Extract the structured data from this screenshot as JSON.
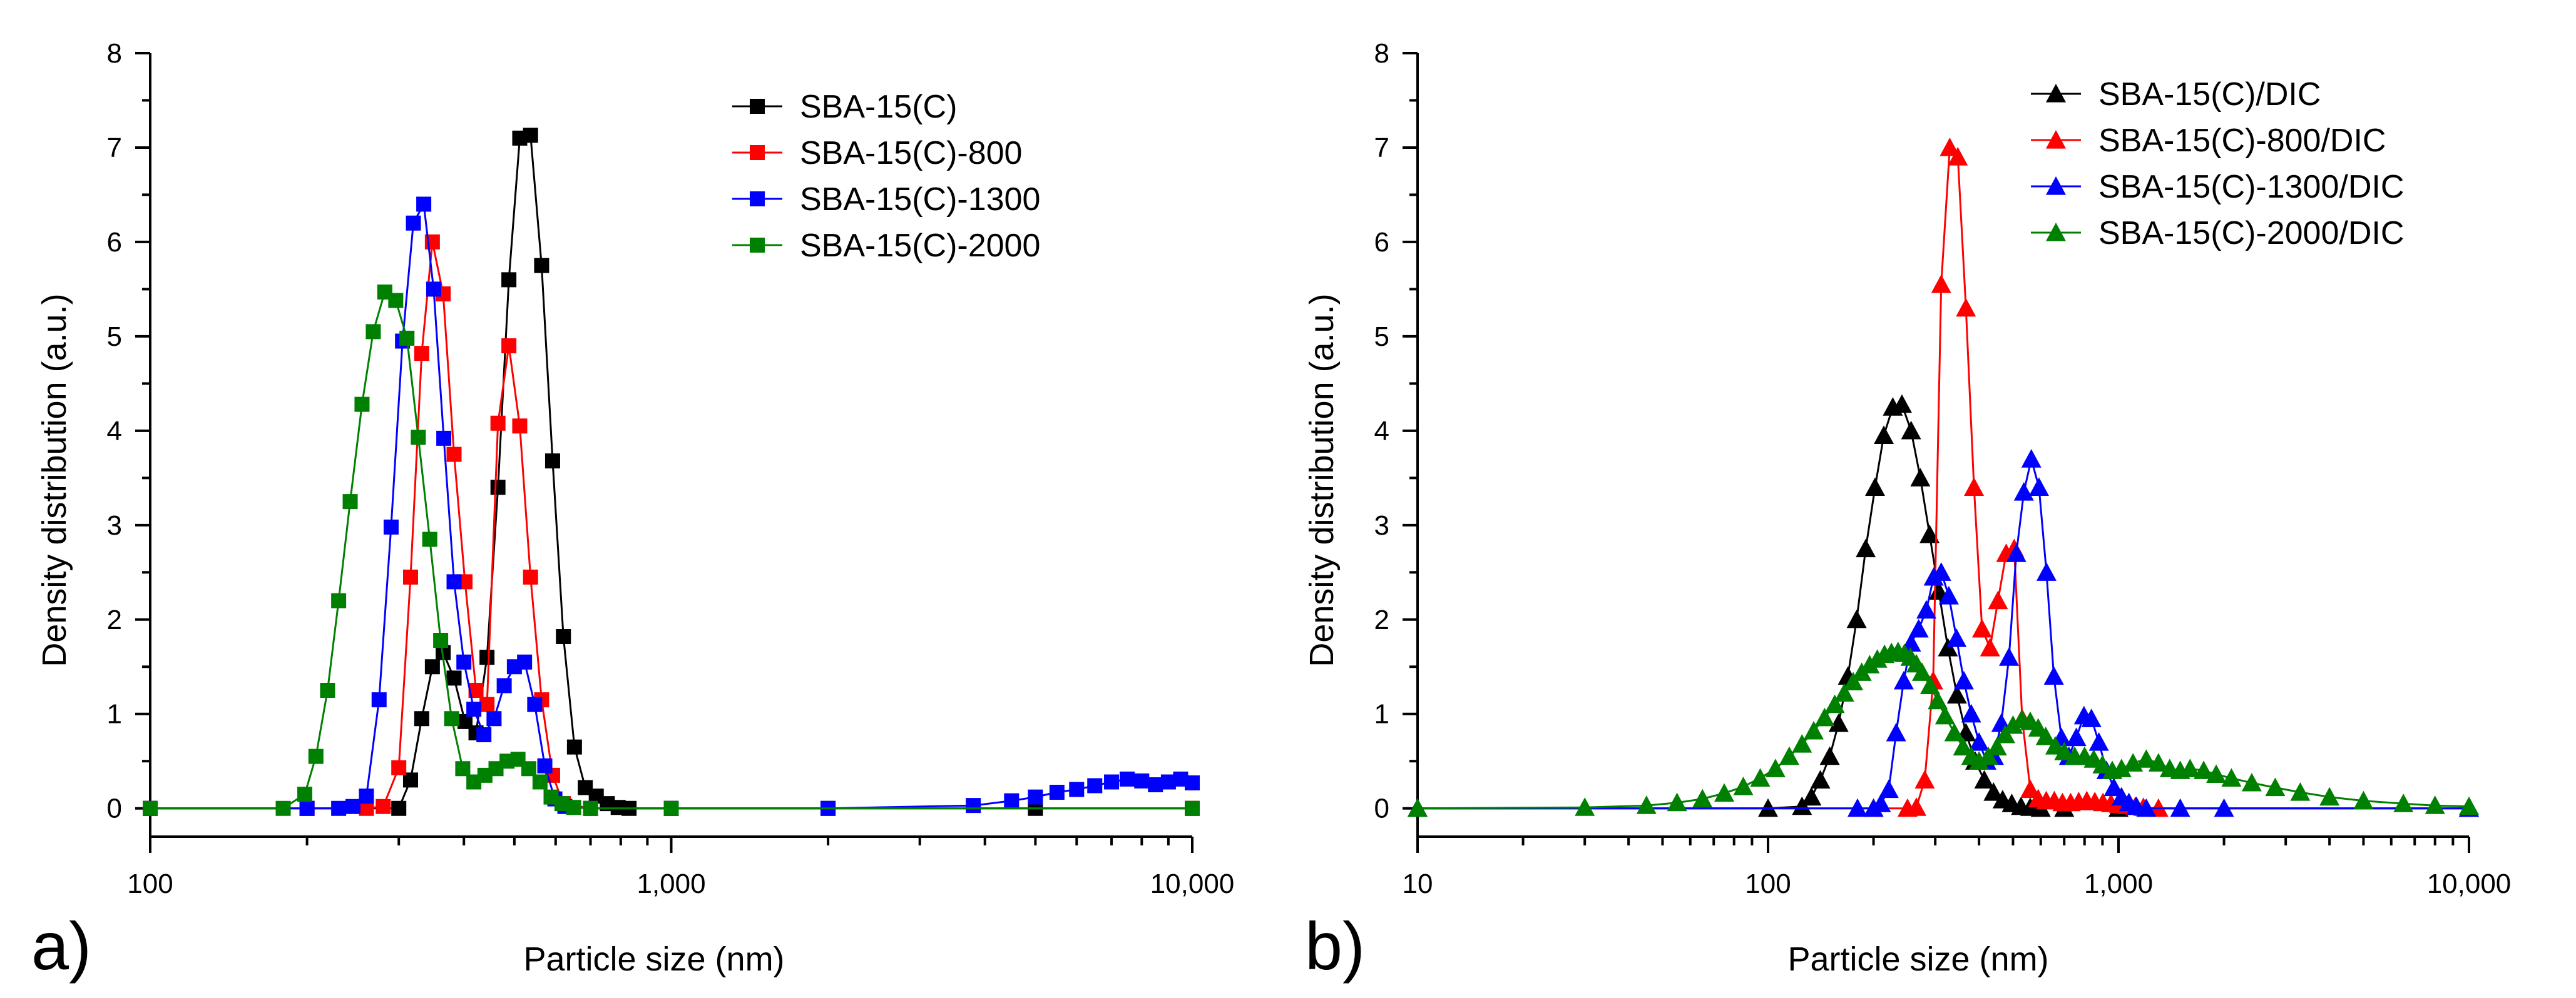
{
  "chart_data": [
    {
      "panel_label": "a)",
      "type": "line",
      "x_scale": "log",
      "xlabel": "Particle size (nm)",
      "ylabel": "Density distribution (a.u.)",
      "xlim": [
        100,
        10000
      ],
      "ylim": [
        -0.3,
        8
      ],
      "x_ticks": [
        100,
        1000,
        10000
      ],
      "x_tick_labels": [
        "100",
        "1,000",
        "10,000"
      ],
      "y_ticks": [
        0,
        1,
        2,
        3,
        4,
        5,
        6,
        7,
        8
      ],
      "y_tick_labels": [
        "0",
        "1",
        "2",
        "3",
        "4",
        "5",
        "6",
        "7",
        "8"
      ],
      "marker": "square",
      "legend_position": "top-right",
      "series": [
        {
          "name": "SBA-15(C)",
          "color": "#000000",
          "x": [
            100,
            200,
            300,
            316,
            332,
            348,
            365,
            383,
            402,
            422,
            443,
            465,
            488,
            512,
            537,
            564,
            592,
            621,
            652,
            684,
            718,
            754,
            791,
            830,
            1000,
            2000,
            5000,
            10000
          ],
          "y": [
            0,
            0,
            0,
            0.3,
            0.95,
            1.5,
            1.65,
            1.38,
            0.92,
            0.8,
            1.6,
            3.4,
            5.6,
            7.1,
            7.13,
            5.75,
            3.68,
            1.82,
            0.65,
            0.22,
            0.13,
            0.05,
            0.01,
            0,
            0,
            0,
            0,
            0
          ]
        },
        {
          "name": "SBA-15(C)-800",
          "color": "#ff0000",
          "x": [
            100,
            200,
            260,
            280,
            300,
            316,
            332,
            348,
            365,
            383,
            402,
            422,
            443,
            465,
            488,
            512,
            537,
            564,
            592,
            621,
            700,
            1000,
            10000
          ],
          "y": [
            0,
            0,
            0,
            0.02,
            0.43,
            2.45,
            4.82,
            6.0,
            5.45,
            3.75,
            2.4,
            1.25,
            1.1,
            4.08,
            4.9,
            4.05,
            2.45,
            1.15,
            0.35,
            0.05,
            0,
            0,
            0
          ]
        },
        {
          "name": "SBA-15(C)-1300",
          "color": "#0000ff",
          "x": [
            100,
            200,
            230,
            245,
            260,
            275,
            290,
            305,
            320,
            335,
            350,
            366,
            383,
            400,
            418,
            437,
            457,
            478,
            500,
            523,
            547,
            572,
            598,
            625,
            700,
            1000,
            2000,
            3800,
            4500,
            5000,
            5500,
            6000,
            6500,
            7000,
            7500,
            8000,
            8500,
            9000,
            9500,
            10000
          ],
          "y": [
            0,
            0,
            0,
            0.02,
            0.13,
            1.15,
            2.98,
            4.95,
            6.2,
            6.4,
            5.5,
            3.92,
            2.4,
            1.55,
            1.05,
            0.78,
            0.95,
            1.3,
            1.5,
            1.55,
            1.1,
            0.45,
            0.1,
            0.02,
            0,
            0,
            0,
            0.03,
            0.08,
            0.12,
            0.17,
            0.2,
            0.24,
            0.28,
            0.31,
            0.29,
            0.25,
            0.28,
            0.31,
            0.27
          ]
        },
        {
          "name": "SBA-15(C)-2000",
          "color": "#008000",
          "x": [
            100,
            180,
            198,
            208,
            219,
            230,
            242,
            255,
            268,
            282,
            296,
            311,
            327,
            344,
            361,
            379,
            398,
            418,
            439,
            461,
            484,
            508,
            533,
            560,
            588,
            617,
            650,
            700,
            1000,
            10000
          ],
          "y": [
            0,
            0,
            0.15,
            0.55,
            1.25,
            2.2,
            3.25,
            4.28,
            5.05,
            5.47,
            5.38,
            4.98,
            3.93,
            2.85,
            1.78,
            0.95,
            0.42,
            0.28,
            0.35,
            0.42,
            0.5,
            0.52,
            0.42,
            0.28,
            0.12,
            0.05,
            0.01,
            0,
            0,
            0
          ]
        }
      ]
    },
    {
      "panel_label": "b)",
      "type": "line",
      "x_scale": "log",
      "xlabel": "Particle size (nm)",
      "ylabel": "Density distribution (a.u.)",
      "xlim": [
        10,
        10000
      ],
      "ylim": [
        -0.3,
        8
      ],
      "x_ticks": [
        10,
        100,
        1000,
        10000
      ],
      "x_tick_labels": [
        "10",
        "100",
        "1,000",
        "10,000"
      ],
      "y_ticks": [
        0,
        1,
        2,
        3,
        4,
        5,
        6,
        7,
        8
      ],
      "y_tick_labels": [
        "0",
        "1",
        "2",
        "3",
        "4",
        "5",
        "6",
        "7",
        "8"
      ],
      "marker": "triangle",
      "legend_position": "top-right",
      "series": [
        {
          "name": "SBA-15(C)/DIC",
          "color": "#000000",
          "x": [
            10,
            100,
            125,
            133,
            141,
            150,
            159,
            169,
            179,
            190,
            202,
            214,
            227,
            241,
            256,
            272,
            289,
            307,
            326,
            346,
            367,
            390,
            414,
            440,
            467,
            496,
            527,
            560,
            600,
            700,
            1000,
            10000
          ],
          "y": [
            0,
            0,
            0.02,
            0.12,
            0.3,
            0.55,
            0.9,
            1.4,
            2.0,
            2.75,
            3.4,
            3.95,
            4.25,
            4.28,
            4.0,
            3.5,
            2.9,
            2.3,
            1.7,
            1.2,
            0.8,
            0.5,
            0.3,
            0.17,
            0.09,
            0.05,
            0.02,
            0.01,
            0,
            0,
            0,
            0
          ]
        },
        {
          "name": "SBA-15(C)-800/DIC",
          "color": "#ff0000",
          "x": [
            10,
            200,
            250,
            265,
            280,
            296,
            312,
            330,
            348,
            367,
            387,
            408,
            430,
            453,
            478,
            504,
            531,
            560,
            590,
            622,
            656,
            692,
            730,
            770,
            812,
            856,
            903,
            952,
            1004,
            1059,
            1117,
            1178,
            1300,
            10000
          ],
          "y": [
            0,
            0,
            0,
            0.01,
            0.3,
            1.35,
            5.55,
            7.0,
            6.9,
            5.3,
            3.4,
            1.9,
            1.7,
            2.2,
            2.7,
            2.75,
            0.95,
            0.2,
            0.1,
            0.08,
            0.08,
            0.06,
            0.06,
            0.07,
            0.08,
            0.07,
            0.06,
            0.05,
            0.04,
            0.03,
            0.02,
            0.01,
            0,
            0
          ]
        },
        {
          "name": "SBA-15(C)-1300/DIC",
          "color": "#0000ff",
          "x": [
            10,
            180,
            200,
            210,
            221,
            232,
            244,
            256,
            269,
            283,
            297,
            312,
            328,
            345,
            362,
            380,
            400,
            420,
            441,
            463,
            487,
            511,
            537,
            564,
            593,
            623,
            654,
            687,
            722,
            758,
            797,
            837,
            879,
            924,
            970,
            1020,
            1071,
            1125,
            1200,
            1500,
            2000,
            10000
          ],
          "y": [
            0,
            0,
            0,
            0.05,
            0.2,
            0.8,
            1.35,
            1.75,
            1.9,
            2.1,
            2.45,
            2.5,
            2.25,
            1.8,
            1.35,
            1.0,
            0.7,
            0.5,
            0.55,
            0.9,
            1.6,
            2.7,
            3.35,
            3.7,
            3.4,
            2.5,
            1.4,
            0.75,
            0.55,
            0.75,
            0.98,
            0.95,
            0.7,
            0.4,
            0.22,
            0.12,
            0.06,
            0.02,
            0,
            0,
            0,
            0
          ]
        },
        {
          "name": "SBA-15(C)-2000/DIC",
          "color": "#008000",
          "x": [
            10,
            30,
            45,
            55,
            65,
            75,
            85,
            95,
            105,
            115,
            125,
            135,
            145,
            155,
            165,
            175,
            185,
            195,
            205,
            215,
            225,
            235,
            245,
            255,
            265,
            275,
            290,
            305,
            320,
            340,
            360,
            380,
            400,
            425,
            450,
            475,
            500,
            530,
            560,
            590,
            620,
            660,
            700,
            750,
            800,
            850,
            900,
            960,
            1020,
            1100,
            1200,
            1300,
            1400,
            1500,
            1600,
            1750,
            1900,
            2100,
            2400,
            2800,
            3300,
            4000,
            5000,
            6500,
            8000,
            10000
          ],
          "y": [
            0,
            0.01,
            0.03,
            0.06,
            0.1,
            0.16,
            0.23,
            0.32,
            0.42,
            0.55,
            0.68,
            0.82,
            0.96,
            1.1,
            1.22,
            1.34,
            1.44,
            1.52,
            1.58,
            1.63,
            1.65,
            1.66,
            1.64,
            1.6,
            1.53,
            1.44,
            1.3,
            1.14,
            0.98,
            0.8,
            0.65,
            0.55,
            0.5,
            0.55,
            0.65,
            0.78,
            0.88,
            0.94,
            0.92,
            0.85,
            0.76,
            0.66,
            0.6,
            0.55,
            0.55,
            0.52,
            0.46,
            0.4,
            0.42,
            0.48,
            0.52,
            0.48,
            0.42,
            0.4,
            0.42,
            0.4,
            0.36,
            0.32,
            0.27,
            0.22,
            0.17,
            0.12,
            0.08,
            0.05,
            0.03,
            0.02
          ]
        }
      ]
    }
  ]
}
